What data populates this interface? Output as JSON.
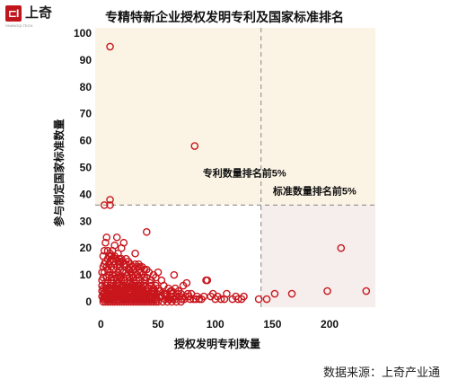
{
  "brand": {
    "mark": "⊏I",
    "name": "上奇",
    "subtitle": "SHANGQI TECH"
  },
  "colors": {
    "accent": "#c0151c",
    "zone_top": "#fbf3e4",
    "zone_right": "#f5eeec",
    "marker": "#c8161d",
    "guide": "#999999"
  },
  "source_note": "数据来源：上奇产业通",
  "chart_data": {
    "type": "scatter",
    "title": "专精特新企业授权发明专利及国家标准排名",
    "xlabel": "授权发明专利数量",
    "ylabel": "参与制定国家标准数量",
    "xlim": [
      -5,
      240
    ],
    "ylim": [
      -2,
      102
    ],
    "xticks": [
      0,
      50,
      100,
      150,
      200
    ],
    "yticks": [
      0,
      10,
      20,
      30,
      40,
      50,
      60,
      70,
      80,
      90,
      100
    ],
    "thresholds": {
      "x": 140,
      "y": 36
    },
    "annotations": [
      {
        "text": "专利数量排名前5%",
        "at": [
          140,
          48
        ]
      },
      {
        "text": "标准数量排名前5%",
        "at": [
          190,
          39
        ]
      }
    ],
    "points": [
      [
        8,
        95
      ],
      [
        82,
        58
      ],
      [
        8,
        38
      ],
      [
        3,
        36
      ],
      [
        8,
        36
      ],
      [
        210,
        20
      ],
      [
        232,
        4
      ],
      [
        198,
        4
      ],
      [
        167,
        3
      ],
      [
        152,
        3
      ],
      [
        145,
        1
      ],
      [
        138,
        1
      ],
      [
        125,
        2
      ],
      [
        118,
        2
      ],
      [
        123,
        1
      ],
      [
        110,
        3
      ],
      [
        100,
        1
      ],
      [
        92,
        8
      ],
      [
        93,
        8
      ],
      [
        88,
        1
      ],
      [
        77,
        2
      ],
      [
        75,
        7
      ],
      [
        70,
        3
      ],
      [
        60,
        1
      ],
      [
        47,
        1
      ],
      [
        40,
        26
      ],
      [
        64,
        10
      ],
      [
        55,
        6
      ],
      [
        50,
        5
      ],
      [
        49,
        3
      ],
      [
        45,
        2
      ],
      [
        42,
        2
      ],
      [
        38,
        3
      ],
      [
        35,
        2
      ],
      [
        33,
        14
      ],
      [
        30,
        18
      ],
      [
        27,
        6
      ],
      [
        25,
        12
      ],
      [
        22,
        16
      ],
      [
        20,
        22
      ],
      [
        18,
        20
      ],
      [
        16,
        14
      ],
      [
        15,
        18
      ],
      [
        14,
        24
      ],
      [
        12,
        21
      ],
      [
        10,
        16
      ],
      [
        9,
        13
      ],
      [
        8,
        18
      ],
      [
        7,
        17
      ],
      [
        6,
        12
      ],
      [
        5,
        9
      ],
      [
        4,
        7
      ],
      [
        3,
        11
      ],
      [
        2,
        5
      ],
      [
        2,
        1
      ],
      [
        3,
        3
      ],
      [
        4,
        2
      ],
      [
        5,
        4
      ],
      [
        6,
        1
      ],
      [
        7,
        3
      ],
      [
        8,
        6
      ],
      [
        9,
        2
      ],
      [
        10,
        5
      ],
      [
        11,
        8
      ],
      [
        12,
        3
      ],
      [
        13,
        6
      ],
      [
        14,
        2
      ],
      [
        15,
        7
      ],
      [
        16,
        4
      ],
      [
        17,
        9
      ],
      [
        18,
        2
      ],
      [
        19,
        6
      ],
      [
        20,
        3
      ],
      [
        21,
        8
      ],
      [
        22,
        1
      ],
      [
        23,
        5
      ],
      [
        24,
        3
      ],
      [
        25,
        7
      ],
      [
        26,
        2
      ],
      [
        27,
        4
      ],
      [
        28,
        9
      ],
      [
        29,
        1
      ],
      [
        30,
        5
      ],
      [
        31,
        3
      ],
      [
        32,
        6
      ],
      [
        33,
        2
      ],
      [
        34,
        8
      ],
      [
        35,
        4
      ],
      [
        36,
        1
      ],
      [
        37,
        6
      ],
      [
        38,
        9
      ],
      [
        39,
        3
      ],
      [
        41,
        5
      ],
      [
        43,
        7
      ],
      [
        44,
        4
      ],
      [
        46,
        3
      ],
      [
        48,
        6
      ],
      [
        51,
        2
      ],
      [
        52,
        4
      ],
      [
        53,
        8
      ],
      [
        56,
        1
      ],
      [
        58,
        3
      ],
      [
        59,
        5
      ],
      [
        61,
        2
      ],
      [
        62,
        4
      ],
      [
        63,
        1
      ],
      [
        65,
        5
      ],
      [
        66,
        2
      ],
      [
        68,
        4
      ],
      [
        71,
        1
      ],
      [
        72,
        6
      ],
      [
        74,
        2
      ],
      [
        79,
        3
      ],
      [
        81,
        1
      ],
      [
        84,
        2
      ],
      [
        86,
        1
      ],
      [
        96,
        2
      ],
      [
        105,
        1
      ],
      [
        1,
        2
      ],
      [
        1,
        6
      ],
      [
        2,
        9
      ],
      [
        3,
        14
      ],
      [
        4,
        15
      ],
      [
        5,
        13
      ],
      [
        6,
        19
      ],
      [
        7,
        10
      ],
      [
        8,
        11
      ],
      [
        9,
        9
      ],
      [
        10,
        10
      ],
      [
        11,
        12
      ],
      [
        12,
        14
      ],
      [
        13,
        10
      ],
      [
        14,
        9
      ],
      [
        15,
        11
      ],
      [
        16,
        10
      ],
      [
        17,
        13
      ],
      [
        18,
        8
      ],
      [
        19,
        11
      ],
      [
        20,
        9
      ],
      [
        21,
        13
      ],
      [
        22,
        11
      ],
      [
        23,
        10
      ],
      [
        24,
        12
      ],
      [
        25,
        9
      ],
      [
        26,
        11
      ],
      [
        27,
        10
      ],
      [
        28,
        12
      ],
      [
        29,
        9
      ],
      [
        30,
        11
      ],
      [
        31,
        8
      ],
      [
        32,
        10
      ],
      [
        33,
        9
      ],
      [
        34,
        11
      ],
      [
        36,
        10
      ],
      [
        38,
        8
      ],
      [
        40,
        9
      ],
      [
        42,
        11
      ],
      [
        44,
        8
      ],
      [
        46,
        10
      ],
      [
        48,
        9
      ],
      [
        50,
        11
      ],
      [
        5,
        1
      ],
      [
        6,
        3
      ],
      [
        7,
        2
      ],
      [
        8,
        1
      ],
      [
        9,
        4
      ],
      [
        10,
        2
      ],
      [
        11,
        1
      ],
      [
        12,
        4
      ],
      [
        13,
        2
      ],
      [
        14,
        5
      ],
      [
        15,
        1
      ],
      [
        16,
        2
      ],
      [
        17,
        1
      ],
      [
        18,
        3
      ],
      [
        19,
        2
      ],
      [
        20,
        1
      ],
      [
        21,
        3
      ],
      [
        22,
        4
      ],
      [
        23,
        1
      ],
      [
        24,
        2
      ],
      [
        25,
        1
      ],
      [
        26,
        4
      ],
      [
        27,
        1
      ],
      [
        28,
        2
      ],
      [
        29,
        4
      ],
      [
        30,
        1
      ],
      [
        31,
        2
      ],
      [
        32,
        1
      ],
      [
        33,
        4
      ],
      [
        34,
        1
      ],
      [
        35,
        3
      ],
      [
        36,
        2
      ],
      [
        37,
        1
      ],
      [
        38,
        1
      ],
      [
        39,
        2
      ],
      [
        40,
        1
      ],
      [
        41,
        2
      ],
      [
        42,
        1
      ],
      [
        43,
        2
      ],
      [
        44,
        1
      ],
      [
        1,
        4
      ],
      [
        2,
        3
      ],
      [
        3,
        1
      ],
      [
        4,
        5
      ],
      [
        5,
        6
      ],
      [
        6,
        7
      ],
      [
        7,
        5
      ],
      [
        8,
        4
      ],
      [
        9,
        7
      ],
      [
        10,
        3
      ],
      [
        11,
        6
      ],
      [
        12,
        5
      ],
      [
        13,
        4
      ],
      [
        14,
        7
      ],
      [
        15,
        5
      ],
      [
        16,
        6
      ],
      [
        17,
        4
      ],
      [
        18,
        5
      ],
      [
        19,
        4
      ],
      [
        20,
        6
      ],
      [
        21,
        5
      ],
      [
        22,
        6
      ],
      [
        23,
        7
      ],
      [
        24,
        5
      ],
      [
        25,
        4
      ],
      [
        26,
        6
      ],
      [
        27,
        5
      ],
      [
        28,
        6
      ],
      [
        29,
        7
      ],
      [
        30,
        6
      ],
      [
        31,
        5
      ],
      [
        32,
        4
      ],
      [
        33,
        6
      ],
      [
        34,
        5
      ],
      [
        35,
        6
      ],
      [
        36,
        5
      ],
      [
        37,
        4
      ],
      [
        39,
        6
      ],
      [
        40,
        4
      ],
      [
        42,
        5
      ],
      [
        44,
        6
      ],
      [
        46,
        5
      ],
      [
        47,
        4
      ],
      [
        1,
        8
      ],
      [
        1,
        11
      ],
      [
        2,
        13
      ],
      [
        2,
        17
      ],
      [
        3,
        19
      ],
      [
        4,
        22
      ],
      [
        5,
        24
      ],
      [
        6,
        16
      ],
      [
        7,
        14
      ],
      [
        8,
        15
      ],
      [
        9,
        17
      ],
      [
        10,
        19
      ],
      [
        11,
        15
      ],
      [
        12,
        17
      ],
      [
        13,
        16
      ],
      [
        14,
        13
      ],
      [
        15,
        15
      ],
      [
        16,
        16
      ],
      [
        17,
        15
      ],
      [
        18,
        16
      ],
      [
        19,
        15
      ],
      [
        20,
        14
      ],
      [
        22,
        14
      ],
      [
        24,
        15
      ],
      [
        26,
        14
      ],
      [
        28,
        13
      ],
      [
        30,
        14
      ],
      [
        32,
        13
      ],
      [
        34,
        13
      ],
      [
        36,
        13
      ],
      [
        38,
        12
      ],
      [
        40,
        12
      ],
      [
        2,
        0
      ],
      [
        4,
        0
      ],
      [
        6,
        0
      ],
      [
        8,
        0
      ],
      [
        10,
        0
      ],
      [
        12,
        0
      ],
      [
        14,
        0
      ],
      [
        16,
        0
      ],
      [
        18,
        0
      ],
      [
        20,
        0
      ],
      [
        22,
        0
      ],
      [
        24,
        0
      ],
      [
        26,
        0
      ],
      [
        28,
        0
      ],
      [
        30,
        0
      ],
      [
        32,
        0
      ],
      [
        34,
        0
      ],
      [
        36,
        0
      ],
      [
        38,
        0
      ],
      [
        40,
        0
      ],
      [
        42,
        0
      ],
      [
        44,
        0
      ],
      [
        46,
        0
      ],
      [
        48,
        0
      ],
      [
        50,
        0
      ],
      [
        54,
        0
      ],
      [
        58,
        0
      ],
      [
        62,
        0
      ],
      [
        66,
        0
      ],
      [
        70,
        0
      ],
      [
        3,
        2
      ],
      [
        5,
        2
      ],
      [
        7,
        1
      ],
      [
        9,
        1
      ],
      [
        11,
        2
      ],
      [
        13,
        1
      ],
      [
        15,
        3
      ],
      [
        17,
        2
      ],
      [
        19,
        1
      ],
      [
        21,
        2
      ],
      [
        23,
        2
      ],
      [
        25,
        3
      ],
      [
        27,
        2
      ],
      [
        29,
        3
      ],
      [
        31,
        1
      ],
      [
        33,
        3
      ],
      [
        35,
        1
      ],
      [
        37,
        3
      ],
      [
        39,
        1
      ],
      [
        41,
        3
      ],
      [
        43,
        1
      ],
      [
        45,
        4
      ],
      [
        47,
        2
      ],
      [
        49,
        1
      ],
      [
        51,
        4
      ],
      [
        53,
        2
      ],
      [
        55,
        3
      ],
      [
        57,
        2
      ],
      [
        59,
        1
      ],
      [
        61,
        4
      ],
      [
        63,
        3
      ],
      [
        65,
        1
      ],
      [
        67,
        3
      ],
      [
        69,
        2
      ],
      [
        73,
        1
      ],
      [
        76,
        3
      ],
      [
        78,
        1
      ],
      [
        83,
        1
      ],
      [
        90,
        2
      ],
      [
        98,
        3
      ],
      [
        102,
        2
      ],
      [
        108,
        1
      ],
      [
        115,
        1
      ],
      [
        120,
        1
      ]
    ]
  }
}
